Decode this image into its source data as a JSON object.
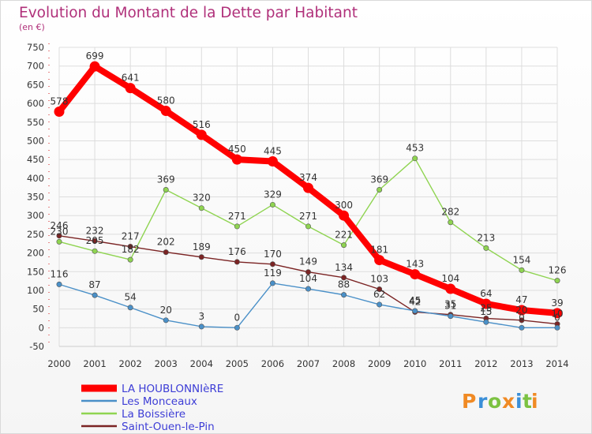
{
  "chart_data": {
    "type": "line",
    "title": "Evolution du Montant de la Dette par Habitant",
    "subtitle": "(en €)",
    "categories": [
      "2000",
      "2001",
      "2002",
      "2003",
      "2004",
      "2005",
      "2006",
      "2007",
      "2008",
      "2009",
      "2010",
      "2011",
      "2012",
      "2013",
      "2014"
    ],
    "ylim": [
      -50,
      750
    ],
    "yticks": [
      -50,
      0,
      50,
      100,
      150,
      200,
      250,
      300,
      350,
      400,
      450,
      500,
      550,
      600,
      650,
      700,
      750
    ],
    "grid": true,
    "legend_position": "bottom-left",
    "series": [
      {
        "name": "LA HOUBLONNIèRE",
        "color": "#ff0000",
        "values": [
          578,
          699,
          641,
          580,
          516,
          450,
          445,
          374,
          300,
          181,
          143,
          104,
          64,
          47,
          39
        ]
      },
      {
        "name": "Les Monceaux",
        "color": "#4a90c8",
        "values": [
          116,
          87,
          54,
          20,
          3,
          0,
          119,
          104,
          88,
          62,
          45,
          31,
          15,
          0,
          0
        ]
      },
      {
        "name": "La Boissière",
        "color": "#8fd451",
        "values": [
          230,
          205,
          182,
          369,
          320,
          271,
          329,
          271,
          221,
          369,
          453,
          282,
          213,
          154,
          126
        ]
      },
      {
        "name": "Saint-Ouen-le-Pin",
        "color": "#7b2424",
        "values": [
          246,
          232,
          217,
          202,
          189,
          176,
          170,
          149,
          134,
          103,
          42,
          35,
          25,
          20,
          10
        ]
      }
    ]
  },
  "logo": {
    "letters": [
      "P",
      "r",
      "o",
      "x",
      "i",
      "t",
      "i"
    ],
    "colors": [
      "#f08a24",
      "#3a8fd8",
      "#7cc242",
      "#f08a24",
      "#3a8fd8",
      "#7cc242",
      "#f08a24"
    ]
  }
}
